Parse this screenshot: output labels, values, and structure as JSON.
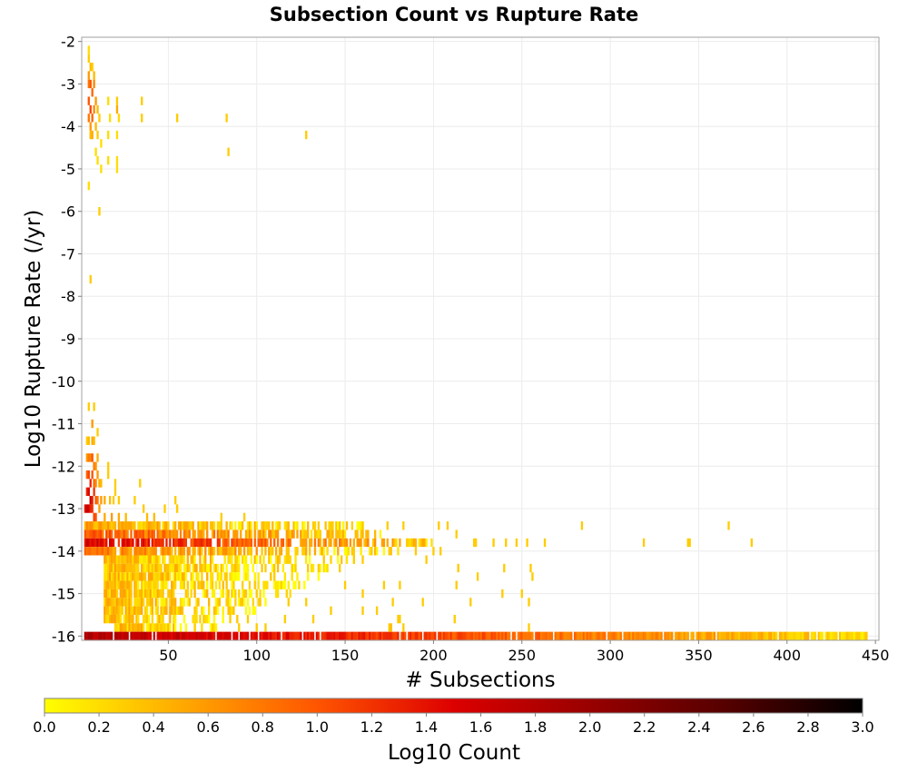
{
  "chart_data": {
    "type": "heatmap",
    "title": "Subsection Count vs Rupture Rate",
    "xlabel": "# Subsections",
    "ylabel": "Log10 Rupture Rate (/yr)",
    "xlim": [
      1,
      452
    ],
    "ylim": [
      -16.1,
      -1.9
    ],
    "x_ticks": [
      50,
      100,
      150,
      200,
      250,
      300,
      350,
      400,
      450
    ],
    "y_ticks": [
      -2,
      -3,
      -4,
      -5,
      -6,
      -7,
      -8,
      -9,
      -10,
      -11,
      -12,
      -13,
      -14,
      -15,
      -16
    ],
    "grid": true,
    "colorbar": {
      "label": "Log10 Count",
      "range": [
        0.0,
        3.0
      ],
      "ticks": [
        "0.0",
        "0.2",
        "0.4",
        "0.6",
        "0.8",
        "1.0",
        "1.2",
        "1.4",
        "1.6",
        "1.8",
        "2.0",
        "2.2",
        "2.4",
        "2.6",
        "2.8",
        "3.0"
      ],
      "colors": [
        "#ffff00",
        "#ffaa00",
        "#ff5500",
        "#dd0000",
        "#990000",
        "#550000",
        "#000000"
      ]
    },
    "cell_size": {
      "x_subsections": 1,
      "y_log10_rate": 0.2
    },
    "cells": [
      [
        5,
        -2.2,
        0.2
      ],
      [
        5,
        -2.4,
        0.3
      ],
      [
        6,
        -2.6,
        0.4
      ],
      [
        5,
        -2.8,
        0.6
      ],
      [
        7,
        -2.6,
        0.3
      ],
      [
        8,
        -2.8,
        0.4
      ],
      [
        5,
        -3.0,
        0.8
      ],
      [
        6,
        -3.0,
        1.0
      ],
      [
        7,
        -3.2,
        0.9
      ],
      [
        8,
        -3.0,
        0.7
      ],
      [
        9,
        -3.4,
        0.6
      ],
      [
        5,
        -3.4,
        1.0
      ],
      [
        6,
        -3.6,
        1.1
      ],
      [
        7,
        -3.8,
        0.9
      ],
      [
        8,
        -3.6,
        0.7
      ],
      [
        5,
        -3.8,
        0.8
      ],
      [
        6,
        -4.0,
        0.6
      ],
      [
        7,
        -4.2,
        0.5
      ],
      [
        9,
        -4.0,
        0.4
      ],
      [
        10,
        -3.6,
        0.4
      ],
      [
        10,
        -4.2,
        0.3
      ],
      [
        11,
        -3.8,
        0.3
      ],
      [
        12,
        -4.4,
        0.2
      ],
      [
        9,
        -4.6,
        0.2
      ],
      [
        6,
        -4.2,
        0.4
      ],
      [
        16,
        -3.4,
        0.2
      ],
      [
        17,
        -3.8,
        0.2
      ],
      [
        16,
        -4.2,
        0.2
      ],
      [
        21,
        -3.4,
        0.3
      ],
      [
        21,
        -3.6,
        0.5
      ],
      [
        22,
        -3.8,
        0.2
      ],
      [
        21,
        -4.2,
        0.2
      ],
      [
        21,
        -4.8,
        0.2
      ],
      [
        21,
        -5.0,
        0.2
      ],
      [
        16,
        -4.8,
        0.2
      ],
      [
        10,
        -4.8,
        0.2
      ],
      [
        12,
        -5.0,
        0.2
      ],
      [
        5,
        -5.4,
        0.2
      ],
      [
        35,
        -3.4,
        0.3
      ],
      [
        35,
        -3.8,
        0.3
      ],
      [
        55,
        -3.8,
        0.3
      ],
      [
        83,
        -3.8,
        0.3
      ],
      [
        84,
        -4.6,
        0.3
      ],
      [
        128,
        -4.2,
        0.3
      ],
      [
        11,
        -6.0,
        0.3
      ],
      [
        6,
        -7.6,
        0.3
      ],
      [
        5,
        -10.6,
        0.3
      ],
      [
        8,
        -10.6,
        0.3
      ],
      [
        7,
        -11.0,
        0.6
      ],
      [
        7,
        -11.4,
        0.5
      ],
      [
        8,
        -11.4,
        0.4
      ],
      [
        4,
        -11.4,
        0.3
      ],
      [
        5,
        -11.4,
        0.4
      ],
      [
        10,
        -11.2,
        0.3
      ],
      [
        4,
        -11.8,
        0.6
      ],
      [
        5,
        -11.8,
        0.8
      ],
      [
        6,
        -11.8,
        0.7
      ],
      [
        7,
        -11.8,
        1.0
      ],
      [
        8,
        -12.0,
        0.8
      ],
      [
        9,
        -12.0,
        0.6
      ],
      [
        10,
        -11.8,
        0.5
      ],
      [
        4,
        -12.2,
        0.9
      ],
      [
        5,
        -12.2,
        1.1
      ],
      [
        6,
        -12.4,
        1.3
      ],
      [
        7,
        -12.2,
        1.0
      ],
      [
        8,
        -12.4,
        0.9
      ],
      [
        9,
        -12.4,
        0.7
      ],
      [
        10,
        -12.2,
        0.6
      ],
      [
        11,
        -12.4,
        0.5
      ],
      [
        12,
        -12.4,
        0.4
      ],
      [
        16,
        -12.0,
        0.3
      ],
      [
        16,
        -12.2,
        0.3
      ],
      [
        20,
        -12.4,
        0.3
      ],
      [
        20,
        -12.6,
        0.3
      ],
      [
        34,
        -12.4,
        0.3
      ],
      [
        4,
        -12.6,
        1.3
      ],
      [
        5,
        -12.6,
        1.5
      ],
      [
        6,
        -12.8,
        1.6
      ],
      [
        7,
        -12.8,
        1.3
      ],
      [
        8,
        -12.6,
        1.2
      ],
      [
        9,
        -12.8,
        1.0
      ],
      [
        10,
        -12.8,
        0.8
      ],
      [
        12,
        -12.8,
        0.6
      ],
      [
        14,
        -12.8,
        0.5
      ],
      [
        17,
        -12.8,
        0.4
      ],
      [
        19,
        -12.8,
        0.3
      ],
      [
        22,
        -12.8,
        0.3
      ],
      [
        31,
        -12.8,
        0.3
      ],
      [
        54,
        -12.8,
        0.3
      ],
      [
        55,
        -13.0,
        0.3
      ],
      [
        36,
        -13.0,
        0.3
      ],
      [
        3,
        -13.0,
        1.4
      ],
      [
        4,
        -13.0,
        1.7
      ],
      [
        5,
        -13.0,
        1.6
      ],
      [
        6,
        -13.0,
        1.3
      ],
      [
        7,
        -13.0,
        1.2
      ],
      [
        8,
        -13.2,
        1.1
      ],
      [
        9,
        -13.2,
        1.0
      ],
      [
        11,
        -13.0,
        0.6
      ],
      [
        14,
        -13.2,
        0.5
      ],
      [
        18,
        -13.2,
        0.6
      ],
      [
        22,
        -13.2,
        0.5
      ],
      [
        26,
        -13.2,
        0.4
      ],
      [
        38,
        -13.2,
        0.4
      ],
      [
        42,
        -13.2,
        0.4
      ],
      [
        48,
        -13.0,
        0.3
      ],
      [
        80,
        -13.2,
        0.3
      ],
      [
        93,
        -13.2,
        0.3
      ],
      [
        95,
        -13.6,
        0.3
      ],
      [
        97,
        -13.6,
        0.3
      ],
      [
        106,
        -13.4,
        0.3
      ],
      [
        109,
        -13.4,
        0.4
      ],
      [
        113,
        -13.4,
        0.3
      ],
      [
        119,
        -13.6,
        0.3
      ],
      [
        132,
        -13.4,
        0.3
      ],
      [
        143,
        -13.4,
        0.3
      ],
      [
        151,
        -13.4,
        0.4
      ],
      [
        160,
        -13.4,
        0.3
      ],
      [
        174,
        -13.4,
        0.3
      ],
      [
        183,
        -13.4,
        0.3
      ],
      [
        203,
        -13.4,
        0.3
      ],
      [
        208,
        -13.4,
        0.3
      ],
      [
        213,
        -13.6,
        0.3
      ],
      [
        284,
        -13.4,
        0.3
      ],
      [
        367,
        -13.4,
        0.3
      ],
      [
        223,
        -13.8,
        0.3
      ],
      [
        234,
        -13.8,
        0.3
      ],
      [
        241,
        -13.8,
        0.3
      ],
      [
        247,
        -13.8,
        0.3
      ],
      [
        253,
        -13.8,
        0.3
      ],
      [
        263,
        -13.8,
        0.3
      ],
      [
        319,
        -13.8,
        0.3
      ],
      [
        344,
        -13.8,
        0.3
      ],
      [
        345,
        -13.8,
        0.3
      ],
      [
        380,
        -13.8,
        0.3
      ],
      [
        200,
        -14.0,
        0.3
      ],
      [
        224,
        -13.8,
        0.3
      ],
      [
        225,
        -14.6,
        0.3
      ],
      [
        214,
        -14.4,
        0.3
      ],
      [
        240,
        -14.4,
        0.3
      ],
      [
        255,
        -14.4,
        0.3
      ],
      [
        256,
        -14.6,
        0.3
      ],
      [
        172,
        -14.8,
        0.3
      ],
      [
        181,
        -14.8,
        0.3
      ],
      [
        213,
        -14.8,
        0.3
      ],
      [
        250,
        -15.0,
        0.3
      ],
      [
        254,
        -15.2,
        0.3
      ],
      [
        239,
        -15.0,
        0.3
      ],
      [
        221,
        -15.2,
        0.3
      ],
      [
        194,
        -15.2,
        0.3
      ],
      [
        177,
        -15.2,
        0.3
      ],
      [
        181,
        -15.6,
        0.3
      ],
      [
        160,
        -15.0,
        0.3
      ],
      [
        160,
        -15.4,
        0.3
      ],
      [
        168,
        -15.4,
        0.3
      ],
      [
        180,
        -15.6,
        0.3
      ],
      [
        212,
        -15.6,
        0.3
      ],
      [
        254,
        -15.8,
        0.3
      ],
      [
        175,
        -15.8,
        0.3
      ],
      [
        176,
        -15.8,
        0.4
      ],
      [
        183,
        -15.8,
        0.3
      ],
      [
        160,
        -14.2,
        0.3
      ],
      [
        150,
        -14.8,
        0.3
      ],
      [
        142,
        -15.4,
        0.3
      ],
      [
        132,
        -15.6,
        0.3
      ],
      [
        128,
        -15.2,
        0.3
      ],
      [
        116,
        -15.6,
        0.3
      ],
      [
        105,
        -15.8,
        0.3
      ],
      [
        118,
        -15.2,
        0.3
      ],
      [
        110,
        -14.6,
        0.3
      ],
      [
        102,
        -14.2,
        0.3
      ],
      [
        120,
        -14.4,
        0.3
      ],
      [
        135,
        -14.4,
        0.3
      ],
      [
        147,
        -14.4,
        0.3
      ],
      [
        155,
        -14.2,
        0.3
      ],
      [
        165,
        -14.0,
        0.3
      ],
      [
        175,
        -14.0,
        0.3
      ],
      [
        185,
        -13.8,
        0.3
      ],
      [
        190,
        -14.0,
        0.3
      ],
      [
        196,
        -14.2,
        0.3
      ],
      [
        204,
        -14.0,
        0.3
      ],
      [
        65,
        -15.8,
        0.3
      ],
      [
        70,
        -15.6,
        0.3
      ],
      [
        75,
        -15.8,
        0.3
      ],
      [
        85,
        -15.6,
        0.3
      ],
      [
        90,
        -15.8,
        0.3
      ],
      [
        95,
        -15.6,
        0.3
      ],
      [
        100,
        -15.8,
        0.3
      ]
    ],
    "dense_bands": [
      {
        "row": -13.4,
        "x_start": 3,
        "x_end": 160,
        "level": 0.4
      },
      {
        "row": -13.6,
        "x_start": 3,
        "x_end": 170,
        "level": 0.8
      },
      {
        "row": -13.8,
        "x_start": 3,
        "x_end": 200,
        "level": 1.2
      },
      {
        "row": -14.0,
        "x_start": 3,
        "x_end": 180,
        "level": 0.6
      },
      {
        "row": -14.2,
        "x_start": 14,
        "x_end": 160,
        "level": 0.3
      },
      {
        "row": -14.4,
        "x_start": 14,
        "x_end": 140,
        "level": 0.3
      },
      {
        "row": -14.6,
        "x_start": 14,
        "x_end": 135,
        "level": 0.3
      },
      {
        "row": -14.8,
        "x_start": 14,
        "x_end": 130,
        "level": 0.3
      },
      {
        "row": -15.0,
        "x_start": 14,
        "x_end": 120,
        "level": 0.3
      },
      {
        "row": -15.2,
        "x_start": 14,
        "x_end": 110,
        "level": 0.3
      },
      {
        "row": -15.4,
        "x_start": 14,
        "x_end": 100,
        "level": 0.3
      },
      {
        "row": -15.6,
        "x_start": 14,
        "x_end": 95,
        "level": 0.3
      },
      {
        "row": -15.8,
        "x_start": 20,
        "x_end": 80,
        "level": 0.3
      },
      {
        "row": -16.0,
        "x_start": 1,
        "x_end": 445,
        "level": 1.3
      }
    ]
  }
}
